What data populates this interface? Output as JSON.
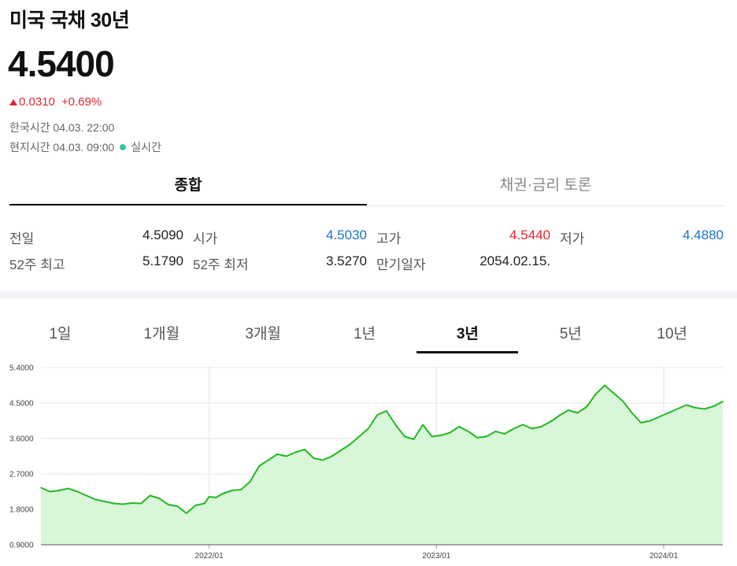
{
  "header": {
    "title": "미국 국채 30년",
    "price": "4.5400",
    "change_abs": "0.0310",
    "change_pct": "+0.69%",
    "korea_time_label": "한국시간",
    "korea_time": "04.03. 22:00",
    "local_time_label": "현지시간",
    "local_time": "04.03. 09:00",
    "realtime_label": "실시간",
    "up_color": "#e0262d",
    "down_color": "#1a73c9"
  },
  "main_tabs": [
    {
      "label": "종합",
      "active": true
    },
    {
      "label": "채권·금리 토론",
      "active": false
    }
  ],
  "stats": {
    "prev_close": {
      "label": "전일",
      "value": "4.5090"
    },
    "open": {
      "label": "시가",
      "value": "4.5030"
    },
    "high": {
      "label": "고가",
      "value": "4.5440"
    },
    "low": {
      "label": "저가",
      "value": "4.4880"
    },
    "high_52w": {
      "label": "52주 최고",
      "value": "5.1790"
    },
    "low_52w": {
      "label": "52주 최저",
      "value": "3.5270"
    },
    "maturity": {
      "label": "만기일자",
      "value": "2054.02.15."
    }
  },
  "period_tabs": [
    {
      "label": "1일",
      "active": false
    },
    {
      "label": "1개월",
      "active": false
    },
    {
      "label": "3개월",
      "active": false
    },
    {
      "label": "1년",
      "active": false
    },
    {
      "label": "3년",
      "active": true
    },
    {
      "label": "5년",
      "active": false
    },
    {
      "label": "10년",
      "active": false
    }
  ],
  "chart_data": {
    "type": "area",
    "title": "",
    "xlabel": "",
    "ylabel": "",
    "ylim": [
      0.9,
      5.4
    ],
    "yticks": [
      "0.9000",
      "1.8000",
      "2.7000",
      "3.6000",
      "4.5000",
      "5.4000"
    ],
    "xticks": [
      {
        "label": "2022/01",
        "x": 2022.0
      },
      {
        "label": "2023/01",
        "x": 2023.0
      },
      {
        "label": "2024/01",
        "x": 2024.0
      }
    ],
    "xlim": [
      2021.26,
      2024.26
    ],
    "grid": true,
    "line_color": "#22b922",
    "fill_color": "#d8f6d8",
    "series": [
      {
        "name": "",
        "x": [
          2021.26,
          2021.3,
          2021.34,
          2021.38,
          2021.42,
          2021.46,
          2021.5,
          2021.54,
          2021.58,
          2021.62,
          2021.66,
          2021.7,
          2021.74,
          2021.78,
          2021.82,
          2021.86,
          2021.9,
          2021.94,
          2021.98,
          2022.0,
          2022.03,
          2022.06,
          2022.1,
          2022.14,
          2022.18,
          2022.22,
          2022.26,
          2022.3,
          2022.34,
          2022.38,
          2022.42,
          2022.46,
          2022.5,
          2022.54,
          2022.58,
          2022.62,
          2022.66,
          2022.7,
          2022.74,
          2022.78,
          2022.82,
          2022.86,
          2022.9,
          2022.94,
          2022.98,
          2023.02,
          2023.06,
          2023.1,
          2023.14,
          2023.18,
          2023.22,
          2023.26,
          2023.3,
          2023.34,
          2023.38,
          2023.42,
          2023.46,
          2023.5,
          2023.54,
          2023.58,
          2023.62,
          2023.66,
          2023.7,
          2023.74,
          2023.78,
          2023.82,
          2023.86,
          2023.9,
          2023.94,
          2023.98,
          2024.02,
          2024.06,
          2024.1,
          2024.14,
          2024.18,
          2024.22,
          2024.26
        ],
        "values": [
          2.35,
          2.25,
          2.28,
          2.33,
          2.25,
          2.15,
          2.05,
          2.0,
          1.95,
          1.93,
          1.96,
          1.95,
          2.15,
          2.08,
          1.92,
          1.88,
          1.7,
          1.9,
          1.95,
          2.12,
          2.1,
          2.2,
          2.28,
          2.3,
          2.5,
          2.9,
          3.05,
          3.2,
          3.15,
          3.25,
          3.32,
          3.1,
          3.05,
          3.15,
          3.3,
          3.45,
          3.65,
          3.85,
          4.2,
          4.3,
          3.95,
          3.65,
          3.58,
          3.95,
          3.65,
          3.68,
          3.75,
          3.9,
          3.78,
          3.62,
          3.65,
          3.78,
          3.72,
          3.85,
          3.95,
          3.85,
          3.9,
          4.02,
          4.18,
          4.32,
          4.25,
          4.4,
          4.72,
          4.95,
          4.75,
          4.55,
          4.25,
          4.0,
          4.05,
          4.15,
          4.25,
          4.35,
          4.45,
          4.38,
          4.35,
          4.42,
          4.54
        ]
      }
    ]
  }
}
